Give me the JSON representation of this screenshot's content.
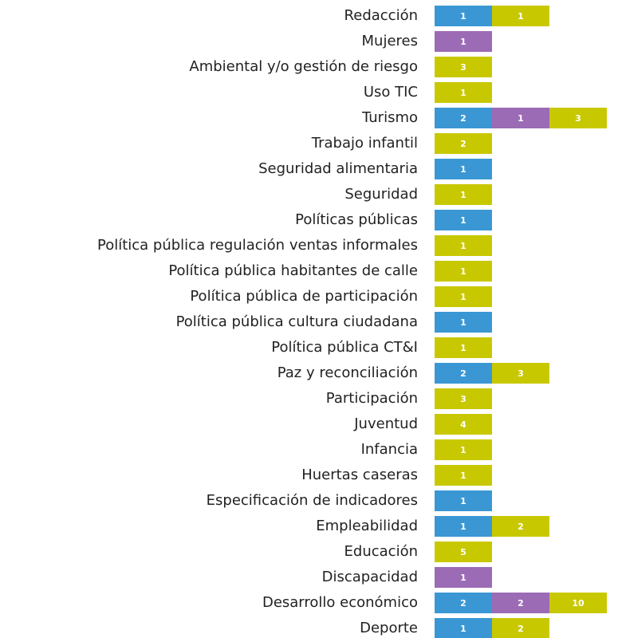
{
  "chart_data": {
    "type": "bar",
    "orientation": "horizontal",
    "stacked": true,
    "categories": [
      "Redacción",
      "Mujeres",
      "Ambiental y/o gestión de riesgo",
      "Uso TIC",
      "Turismo",
      "Trabajo infantil",
      "Seguridad alimentaria",
      "Seguridad",
      "Políticas públicas",
      "Política pública regulación ventas informales",
      "Política pública habitantes de calle",
      "Política pública de participación",
      "Política pública cultura ciudadana",
      "Política pública CT&I",
      "Paz y reconciliación",
      "Participación",
      "Juventud",
      "Infancia",
      "Huertas caseras",
      "Especificación de indicadores",
      "Empleabilidad",
      "Educación",
      "Discapacidad",
      "Desarrollo económico",
      "Deporte"
    ],
    "series": [
      {
        "color": "#3a97d4",
        "values": [
          1,
          null,
          null,
          null,
          2,
          null,
          1,
          null,
          1,
          null,
          null,
          null,
          1,
          null,
          2,
          null,
          null,
          null,
          null,
          1,
          1,
          null,
          null,
          2,
          1
        ]
      },
      {
        "color": "#9b6bb5",
        "values": [
          null,
          1,
          null,
          null,
          1,
          null,
          null,
          null,
          null,
          null,
          null,
          null,
          null,
          null,
          null,
          null,
          null,
          null,
          null,
          null,
          null,
          null,
          1,
          2,
          null
        ]
      },
      {
        "color": "#c8c800",
        "values": [
          1,
          null,
          3,
          1,
          3,
          2,
          null,
          1,
          null,
          1,
          1,
          1,
          null,
          1,
          3,
          3,
          4,
          1,
          1,
          null,
          2,
          5,
          null,
          10,
          2
        ]
      }
    ]
  }
}
